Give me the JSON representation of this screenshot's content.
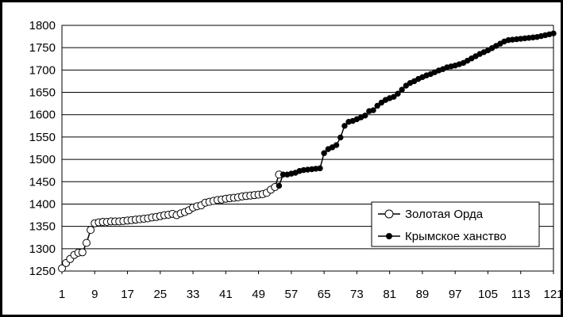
{
  "chart_data": {
    "type": "line",
    "title": "",
    "xlabel": "",
    "ylabel": "",
    "ylim": [
      1250,
      1800
    ],
    "y_ticks": [
      1250,
      1300,
      1350,
      1400,
      1450,
      1500,
      1550,
      1600,
      1650,
      1700,
      1750,
      1800
    ],
    "xlim": [
      1,
      121
    ],
    "x_ticks": [
      1,
      9,
      17,
      25,
      33,
      41,
      49,
      57,
      65,
      73,
      81,
      89,
      97,
      105,
      113,
      121
    ],
    "grid": "horizontal",
    "legend_position": "bottom-right",
    "series": [
      {
        "name": "Золотая Орда",
        "marker": "open-circle",
        "x": [
          1,
          2,
          3,
          4,
          5,
          6,
          7,
          8,
          9,
          10,
          11,
          12,
          13,
          14,
          15,
          16,
          17,
          18,
          19,
          20,
          21,
          22,
          23,
          24,
          25,
          26,
          27,
          28,
          29,
          30,
          31,
          32,
          33,
          34,
          35,
          36,
          37,
          38,
          39,
          40,
          41,
          42,
          43,
          44,
          45,
          46,
          47,
          48,
          49,
          50,
          51,
          52,
          53,
          54
        ],
        "values": [
          1256,
          1268,
          1277,
          1286,
          1291,
          1292,
          1313,
          1342,
          1357,
          1359,
          1360,
          1360,
          1361,
          1361,
          1361,
          1362,
          1363,
          1364,
          1365,
          1366,
          1367,
          1368,
          1370,
          1371,
          1373,
          1375,
          1376,
          1378,
          1375,
          1379,
          1382,
          1386,
          1392,
          1395,
          1397,
          1403,
          1405,
          1407,
          1409,
          1410,
          1412,
          1413,
          1414,
          1415,
          1417,
          1418,
          1419,
          1420,
          1421,
          1422,
          1425,
          1432,
          1438,
          1466
        ]
      },
      {
        "name": "Крымское ханство",
        "marker": "filled-circle",
        "x": [
          54,
          55,
          56,
          57,
          58,
          59,
          60,
          61,
          62,
          63,
          64,
          65,
          66,
          67,
          68,
          69,
          70,
          71,
          72,
          73,
          74,
          75,
          76,
          77,
          78,
          79,
          80,
          81,
          82,
          83,
          84,
          85,
          86,
          87,
          88,
          89,
          90,
          91,
          92,
          93,
          94,
          95,
          96,
          97,
          98,
          99,
          100,
          101,
          102,
          103,
          104,
          105,
          106,
          107,
          108,
          109,
          110,
          111,
          112,
          113,
          114,
          115,
          116,
          117,
          118,
          119,
          120,
          121
        ],
        "values": [
          1441,
          1466,
          1466,
          1468,
          1470,
          1474,
          1476,
          1477,
          1478,
          1479,
          1480,
          1514,
          1523,
          1527,
          1532,
          1549,
          1575,
          1584,
          1586,
          1590,
          1594,
          1598,
          1608,
          1610,
          1620,
          1627,
          1633,
          1637,
          1640,
          1647,
          1656,
          1665,
          1671,
          1675,
          1680,
          1684,
          1688,
          1691,
          1695,
          1699,
          1702,
          1706,
          1708,
          1710,
          1713,
          1716,
          1721,
          1726,
          1731,
          1736,
          1740,
          1744,
          1749,
          1754,
          1759,
          1764,
          1767,
          1768,
          1769,
          1770,
          1771,
          1772,
          1773,
          1774,
          1776,
          1778,
          1780,
          1782
        ]
      }
    ]
  },
  "legend": {
    "items": [
      "Золотая Орда",
      "Крымское ханство"
    ]
  }
}
